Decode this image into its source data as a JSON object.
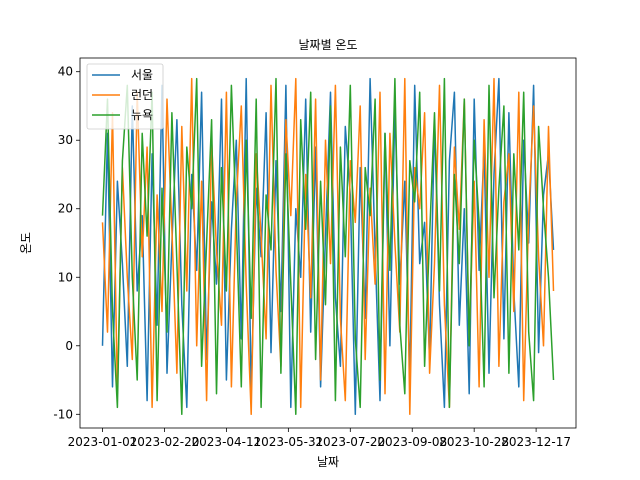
{
  "chart_data": {
    "type": "line",
    "title": "날짜별 온도",
    "xlabel": "날짜",
    "ylabel": "온도",
    "x_range": [
      "2023-01-01",
      "2023-12-31"
    ],
    "x_ticks": [
      "2023-01-01",
      "2023-02-20",
      "2023-04-11",
      "2023-05-31",
      "2023-07-20",
      "2023-09-08",
      "2023-10-28",
      "2023-12-17"
    ],
    "ylim": [
      -12,
      42
    ],
    "y_ticks": [
      -10,
      0,
      10,
      20,
      30,
      40
    ],
    "legend_position": "top-left",
    "grid": false,
    "series": [
      {
        "name": "서울",
        "color": "#1f77b4",
        "x": [
          "2023-01-01",
          "2023-01-05",
          "2023-01-09",
          "2023-01-13",
          "2023-01-17",
          "2023-01-21",
          "2023-01-25",
          "2023-01-29",
          "2023-02-02",
          "2023-02-06",
          "2023-02-10",
          "2023-02-14",
          "2023-02-18",
          "2023-02-22",
          "2023-02-26",
          "2023-03-02",
          "2023-03-06",
          "2023-03-10",
          "2023-03-14",
          "2023-03-18",
          "2023-03-22",
          "2023-03-26",
          "2023-03-30",
          "2023-04-03",
          "2023-04-07",
          "2023-04-11",
          "2023-04-15",
          "2023-04-19",
          "2023-04-23",
          "2023-04-27",
          "2023-05-01",
          "2023-05-05",
          "2023-05-09",
          "2023-05-13",
          "2023-05-17",
          "2023-05-21",
          "2023-05-25",
          "2023-05-29",
          "2023-06-02",
          "2023-06-06",
          "2023-06-10",
          "2023-06-14",
          "2023-06-18",
          "2023-06-22",
          "2023-06-26",
          "2023-06-30",
          "2023-07-04",
          "2023-07-08",
          "2023-07-12",
          "2023-07-16",
          "2023-07-20",
          "2023-07-24",
          "2023-07-28",
          "2023-08-01",
          "2023-08-05",
          "2023-08-09",
          "2023-08-13",
          "2023-08-17",
          "2023-08-21",
          "2023-08-25",
          "2023-08-29",
          "2023-09-02",
          "2023-09-06",
          "2023-09-10",
          "2023-09-14",
          "2023-09-18",
          "2023-09-22",
          "2023-09-26",
          "2023-09-30",
          "2023-10-04",
          "2023-10-08",
          "2023-10-12",
          "2023-10-16",
          "2023-10-20",
          "2023-10-24",
          "2023-10-28",
          "2023-11-01",
          "2023-11-05",
          "2023-11-09",
          "2023-11-13",
          "2023-11-17",
          "2023-11-21",
          "2023-11-25",
          "2023-11-29",
          "2023-12-03",
          "2023-12-07",
          "2023-12-11",
          "2023-12-15",
          "2023-12-19",
          "2023-12-23",
          "2023-12-27",
          "2023-12-31"
        ],
        "y": [
          0,
          31,
          -6,
          24,
          12,
          -3,
          35,
          8,
          19,
          -8,
          28,
          3,
          38,
          -4,
          15,
          33,
          6,
          -9,
          25,
          11,
          37,
          -2,
          21,
          9,
          36,
          -5,
          17,
          30,
          1,
          39,
          -7,
          23,
          13,
          34,
          -1,
          27,
          5,
          38,
          -9,
          20,
          10,
          36,
          2,
          29,
          -6,
          16,
          37,
          7,
          -3,
          32,
          22,
          -10,
          26,
          4,
          39,
          14,
          -8,
          31,
          0,
          35,
          9,
          24,
          -5,
          38,
          12,
          18,
          -2,
          33,
          6,
          -9,
          27,
          37,
          3,
          20,
          -7,
          36,
          11,
          29,
          -4,
          25,
          39,
          1,
          34,
          8,
          -6,
          30,
          15,
          38,
          -1,
          22,
          28,
          14
        ]
      },
      {
        "name": "런던",
        "color": "#ff7f0e",
        "x": [
          "2023-01-01",
          "2023-01-05",
          "2023-01-09",
          "2023-01-13",
          "2023-01-17",
          "2023-01-21",
          "2023-01-25",
          "2023-01-29",
          "2023-02-02",
          "2023-02-06",
          "2023-02-10",
          "2023-02-14",
          "2023-02-18",
          "2023-02-22",
          "2023-02-26",
          "2023-03-02",
          "2023-03-06",
          "2023-03-10",
          "2023-03-14",
          "2023-03-18",
          "2023-03-22",
          "2023-03-26",
          "2023-03-30",
          "2023-04-03",
          "2023-04-07",
          "2023-04-11",
          "2023-04-15",
          "2023-04-19",
          "2023-04-23",
          "2023-04-27",
          "2023-05-01",
          "2023-05-05",
          "2023-05-09",
          "2023-05-13",
          "2023-05-17",
          "2023-05-21",
          "2023-05-25",
          "2023-05-29",
          "2023-06-02",
          "2023-06-06",
          "2023-06-10",
          "2023-06-14",
          "2023-06-18",
          "2023-06-22",
          "2023-06-26",
          "2023-06-30",
          "2023-07-04",
          "2023-07-08",
          "2023-07-12",
          "2023-07-16",
          "2023-07-20",
          "2023-07-24",
          "2023-07-28",
          "2023-08-01",
          "2023-08-05",
          "2023-08-09",
          "2023-08-13",
          "2023-08-17",
          "2023-08-21",
          "2023-08-25",
          "2023-08-29",
          "2023-09-02",
          "2023-09-06",
          "2023-09-10",
          "2023-09-14",
          "2023-09-18",
          "2023-09-22",
          "2023-09-26",
          "2023-09-30",
          "2023-10-04",
          "2023-10-08",
          "2023-10-12",
          "2023-10-16",
          "2023-10-20",
          "2023-10-24",
          "2023-10-28",
          "2023-11-01",
          "2023-11-05",
          "2023-11-09",
          "2023-11-13",
          "2023-11-17",
          "2023-11-21",
          "2023-11-25",
          "2023-11-29",
          "2023-12-03",
          "2023-12-07",
          "2023-12-11",
          "2023-12-15",
          "2023-12-19",
          "2023-12-23",
          "2023-12-27",
          "2023-12-31"
        ],
        "y": [
          18,
          2,
          34,
          -7,
          26,
          10,
          -2,
          37,
          13,
          29,
          -9,
          22,
          5,
          36,
          17,
          -4,
          32,
          8,
          39,
          0,
          24,
          -8,
          30,
          14,
          3,
          37,
          -6,
          21,
          35,
          9,
          -10,
          28,
          16,
          1,
          38,
          11,
          -3,
          33,
          19,
          39,
          -9,
          25,
          7,
          36,
          -5,
          30,
          12,
          38,
          4,
          -8,
          27,
          18,
          35,
          -2,
          23,
          9,
          37,
          -7,
          31,
          15,
          2,
          39,
          -10,
          26,
          20,
          34,
          -4,
          12,
          38,
          6,
          -9,
          29,
          17,
          36,
          1,
          24,
          -6,
          33,
          10,
          39,
          -3,
          21,
          28,
          5,
          37,
          -8,
          19,
          35,
          13,
          0,
          32,
          8
        ]
      },
      {
        "name": "뉴욕",
        "color": "#2ca02c",
        "x": [
          "2023-01-01",
          "2023-01-05",
          "2023-01-09",
          "2023-01-13",
          "2023-01-17",
          "2023-01-21",
          "2023-01-25",
          "2023-01-29",
          "2023-02-02",
          "2023-02-06",
          "2023-02-10",
          "2023-02-14",
          "2023-02-18",
          "2023-02-22",
          "2023-02-26",
          "2023-03-02",
          "2023-03-06",
          "2023-03-10",
          "2023-03-14",
          "2023-03-18",
          "2023-03-22",
          "2023-03-26",
          "2023-03-30",
          "2023-04-03",
          "2023-04-07",
          "2023-04-11",
          "2023-04-15",
          "2023-04-19",
          "2023-04-23",
          "2023-04-27",
          "2023-05-01",
          "2023-05-05",
          "2023-05-09",
          "2023-05-13",
          "2023-05-17",
          "2023-05-21",
          "2023-05-25",
          "2023-05-29",
          "2023-06-02",
          "2023-06-06",
          "2023-06-10",
          "2023-06-14",
          "2023-06-18",
          "2023-06-22",
          "2023-06-26",
          "2023-06-30",
          "2023-07-04",
          "2023-07-08",
          "2023-07-12",
          "2023-07-16",
          "2023-07-20",
          "2023-07-24",
          "2023-07-28",
          "2023-08-01",
          "2023-08-05",
          "2023-08-09",
          "2023-08-13",
          "2023-08-17",
          "2023-08-21",
          "2023-08-25",
          "2023-08-29",
          "2023-09-02",
          "2023-09-06",
          "2023-09-10",
          "2023-09-14",
          "2023-09-18",
          "2023-09-22",
          "2023-09-26",
          "2023-09-30",
          "2023-10-04",
          "2023-10-08",
          "2023-10-12",
          "2023-10-16",
          "2023-10-20",
          "2023-10-24",
          "2023-10-28",
          "2023-11-01",
          "2023-11-05",
          "2023-11-09",
          "2023-11-13",
          "2023-11-17",
          "2023-11-21",
          "2023-11-25",
          "2023-11-29",
          "2023-12-03",
          "2023-12-07",
          "2023-12-11",
          "2023-12-15",
          "2023-12-19",
          "2023-12-23",
          "2023-12-27",
          "2023-12-31"
        ],
        "y": [
          19,
          36,
          5,
          -9,
          27,
          38,
          10,
          -5,
          31,
          16,
          37,
          -8,
          23,
          2,
          34,
          12,
          -10,
          29,
          20,
          39,
          -3,
          15,
          33,
          -7,
          26,
          8,
          38,
          18,
          -6,
          30,
          4,
          36,
          -9,
          22,
          14,
          39,
          -4,
          28,
          9,
          -10,
          33,
          17,
          37,
          -2,
          24,
          6,
          35,
          -8,
          29,
          13,
          38,
          1,
          -9,
          26,
          19,
          36,
          -5,
          31,
          11,
          39,
          3,
          -7,
          27,
          21,
          37,
          -3,
          16,
          34,
          8,
          39,
          -9,
          25,
          12,
          36,
          0,
          30,
          18,
          -6,
          38,
          7,
          23,
          35,
          -4,
          28,
          14,
          37,
          2,
          -8,
          32,
          20,
          10,
          -5
        ]
      }
    ]
  }
}
